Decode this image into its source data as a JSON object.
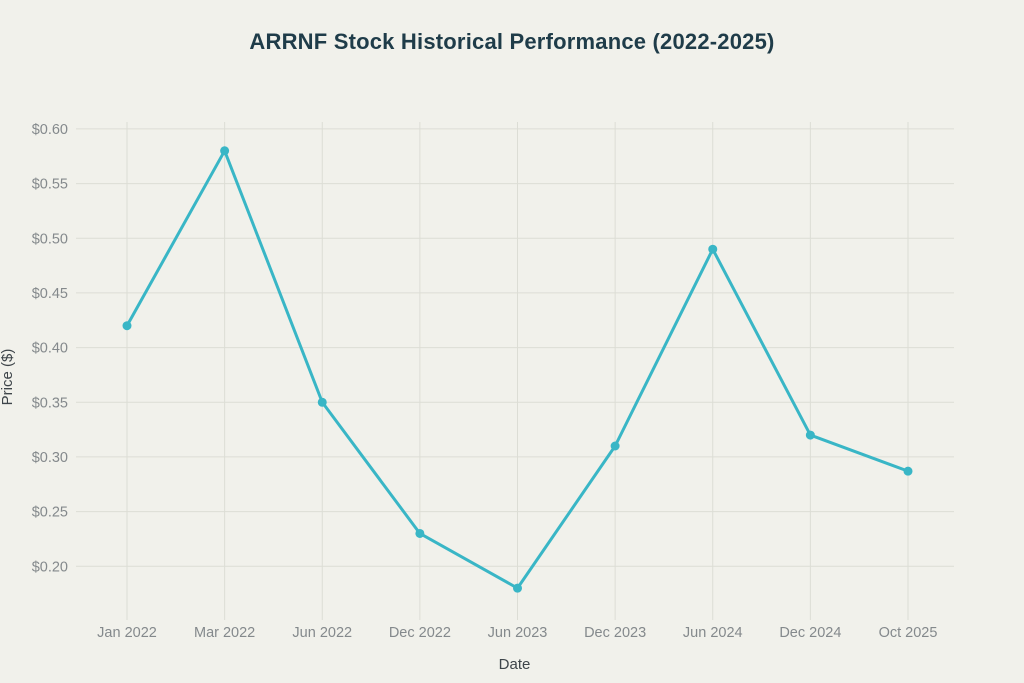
{
  "chart_data": {
    "type": "line",
    "title": "ARRNF Stock Historical Performance (2022-2025)",
    "xlabel": "Date",
    "ylabel": "Price ($)",
    "categories": [
      "Jan 2022",
      "Mar 2022",
      "Jun 2022",
      "Dec 2022",
      "Jun 2023",
      "Dec 2023",
      "Jun 2024",
      "Dec 2024",
      "Oct 2025"
    ],
    "values": [
      0.42,
      0.58,
      0.35,
      0.23,
      0.18,
      0.31,
      0.49,
      0.32,
      0.287
    ],
    "y_ticks": [
      0.2,
      0.25,
      0.3,
      0.35,
      0.4,
      0.45,
      0.5,
      0.55,
      0.6
    ],
    "y_tick_labels": [
      "$0.20",
      "$0.25",
      "$0.30",
      "$0.35",
      "$0.40",
      "$0.45",
      "$0.50",
      "$0.55",
      "$0.60"
    ],
    "ylim": [
      0.16,
      0.61
    ],
    "grid": true,
    "legend": false,
    "marker": "circle",
    "colors": {
      "background": "#f1f1eb",
      "line": "#39b6c6",
      "gridline": "#dcddd5",
      "title": "#1f3c49",
      "tick_label": "#84898c",
      "axis_label": "#3e454a"
    }
  }
}
